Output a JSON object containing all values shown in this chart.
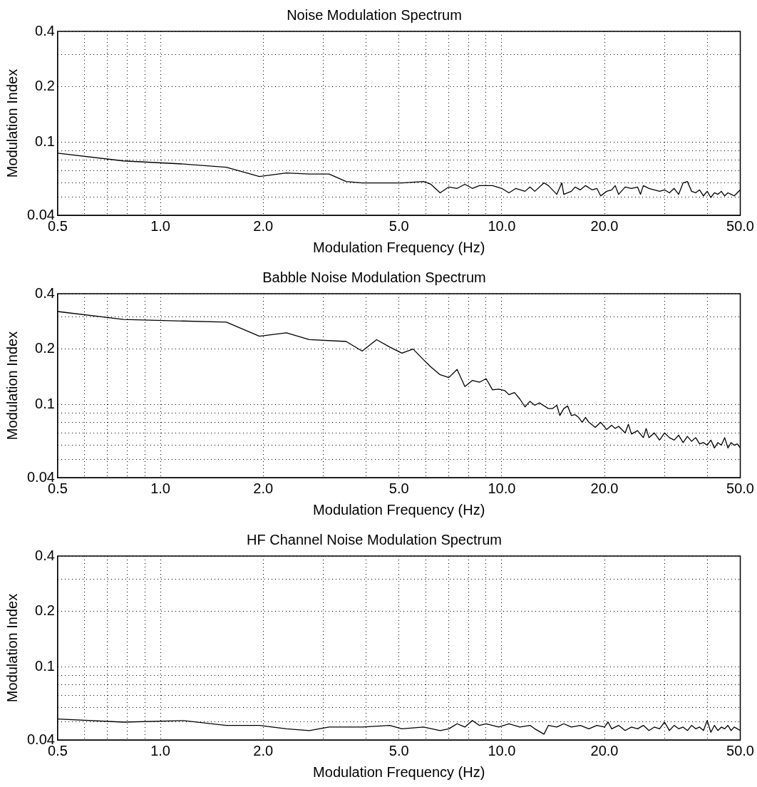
{
  "chart_data": [
    {
      "type": "line",
      "title": "Noise Modulation Spectrum",
      "xlabel": "Modulation Frequency (Hz)",
      "ylabel": "Modulation Index",
      "color": "#000000",
      "log": "xy",
      "grid": true,
      "xlim": [
        0.5,
        50
      ],
      "ylim": [
        0.04,
        0.4
      ],
      "xticks": [
        {
          "value": 0.5,
          "label": "0.5"
        },
        {
          "value": 0.6,
          "label": null
        },
        {
          "value": 0.7,
          "label": null
        },
        {
          "value": 0.8,
          "label": null
        },
        {
          "value": 0.9,
          "label": null
        },
        {
          "value": 1,
          "label": "1.0"
        },
        {
          "value": 2,
          "label": "2.0"
        },
        {
          "value": 3,
          "label": null
        },
        {
          "value": 4,
          "label": null
        },
        {
          "value": 5,
          "label": "5.0"
        },
        {
          "value": 6,
          "label": null
        },
        {
          "value": 7,
          "label": null
        },
        {
          "value": 8,
          "label": null
        },
        {
          "value": 9,
          "label": null
        },
        {
          "value": 10,
          "label": "10.0"
        },
        {
          "value": 20,
          "label": "20.0"
        },
        {
          "value": 30,
          "label": null
        },
        {
          "value": 40,
          "label": null
        },
        {
          "value": 50,
          "label": "50.0"
        }
      ],
      "yticks": [
        0.04,
        {
          "value": 0.05,
          "label": null
        },
        {
          "value": 0.06,
          "label": null
        },
        {
          "value": 0.07,
          "label": null
        },
        {
          "value": 0.08,
          "label": null
        },
        {
          "value": 0.09,
          "label": null
        },
        0.1,
        0.2,
        {
          "value": 0.3,
          "label": null
        },
        0.4
      ],
      "x": [
        0.5,
        0.78,
        1.17,
        1.56,
        1.95,
        2.34,
        2.73,
        3.12,
        3.5,
        3.9,
        4.3,
        5.1,
        5.9,
        6.2,
        6.6,
        7.0,
        7.4,
        7.8,
        8.2,
        8.6,
        9.4,
        10,
        10.5,
        11,
        11.7,
        12.1,
        12.5,
        13.3,
        13.7,
        14.5,
        15,
        15.2,
        16,
        16.4,
        17,
        17.6,
        18.4,
        19,
        19.5,
        20.3,
        21,
        21.5,
        22,
        23,
        24,
        25,
        25.5,
        26,
        27,
        28,
        29,
        30,
        31,
        32,
        33,
        34,
        35,
        36,
        37,
        38,
        39,
        40,
        41,
        42,
        43,
        44,
        45,
        46,
        47,
        48,
        49,
        50
      ],
      "values": [
        0.087,
        0.079,
        0.076,
        0.073,
        0.065,
        0.068,
        0.067,
        0.067,
        0.061,
        0.06,
        0.06,
        0.06,
        0.061,
        0.059,
        0.053,
        0.057,
        0.056,
        0.059,
        0.056,
        0.058,
        0.058,
        0.056,
        0.053,
        0.056,
        0.054,
        0.057,
        0.054,
        0.06,
        0.058,
        0.052,
        0.06,
        0.052,
        0.054,
        0.057,
        0.055,
        0.058,
        0.055,
        0.056,
        0.051,
        0.054,
        0.055,
        0.058,
        0.052,
        0.057,
        0.056,
        0.057,
        0.052,
        0.058,
        0.056,
        0.055,
        0.054,
        0.055,
        0.053,
        0.056,
        0.052,
        0.06,
        0.061,
        0.054,
        0.053,
        0.055,
        0.051,
        0.054,
        0.05,
        0.053,
        0.052,
        0.054,
        0.051,
        0.053,
        0.052,
        0.051,
        0.053,
        0.055
      ]
    },
    {
      "type": "line",
      "title": "Babble Noise Modulation Spectrum",
      "xlabel": "Modulation Frequency (Hz)",
      "ylabel": "Modulation Index",
      "color": "#000000",
      "log": "xy",
      "grid": true,
      "xlim": [
        0.5,
        50
      ],
      "ylim": [
        0.04,
        0.4
      ],
      "xticks": [
        {
          "value": 0.5,
          "label": "0.5"
        },
        {
          "value": 0.6,
          "label": null
        },
        {
          "value": 0.7,
          "label": null
        },
        {
          "value": 0.8,
          "label": null
        },
        {
          "value": 0.9,
          "label": null
        },
        {
          "value": 1,
          "label": "1.0"
        },
        {
          "value": 2,
          "label": "2.0"
        },
        {
          "value": 3,
          "label": null
        },
        {
          "value": 4,
          "label": null
        },
        {
          "value": 5,
          "label": "5.0"
        },
        {
          "value": 6,
          "label": null
        },
        {
          "value": 7,
          "label": null
        },
        {
          "value": 8,
          "label": null
        },
        {
          "value": 9,
          "label": null
        },
        {
          "value": 10,
          "label": "10.0"
        },
        {
          "value": 20,
          "label": "20.0"
        },
        {
          "value": 30,
          "label": null
        },
        {
          "value": 40,
          "label": null
        },
        {
          "value": 50,
          "label": "50.0"
        }
      ],
      "yticks": [
        0.04,
        {
          "value": 0.05,
          "label": null
        },
        {
          "value": 0.06,
          "label": null
        },
        {
          "value": 0.07,
          "label": null
        },
        {
          "value": 0.08,
          "label": null
        },
        {
          "value": 0.09,
          "label": null
        },
        0.1,
        0.2,
        {
          "value": 0.3,
          "label": null
        },
        0.4
      ],
      "x": [
        0.5,
        0.78,
        1.56,
        1.95,
        2.34,
        2.73,
        3.5,
        3.9,
        4.3,
        4.7,
        5.1,
        5.5,
        5.9,
        6.2,
        6.6,
        7.0,
        7.4,
        7.8,
        8.2,
        8.6,
        9.0,
        9.4,
        9.8,
        10.2,
        10.5,
        10.9,
        11.3,
        11.7,
        12.1,
        12.5,
        12.9,
        13.7,
        14.1,
        14.5,
        14.8,
        15.2,
        15.6,
        16,
        16.4,
        16.8,
        17.2,
        17.6,
        18,
        18.8,
        19.5,
        20.3,
        21,
        21.5,
        22,
        23,
        23.5,
        24,
        25,
        26,
        26.5,
        27,
        28,
        29,
        30,
        31,
        32,
        33,
        34,
        35,
        36,
        37,
        38,
        39,
        40,
        41,
        42,
        43,
        44,
        45,
        46,
        47,
        48,
        49,
        50
      ],
      "values": [
        0.32,
        0.29,
        0.28,
        0.235,
        0.245,
        0.225,
        0.22,
        0.195,
        0.225,
        0.205,
        0.19,
        0.2,
        0.175,
        0.16,
        0.145,
        0.14,
        0.155,
        0.125,
        0.135,
        0.132,
        0.138,
        0.12,
        0.121,
        0.119,
        0.113,
        0.116,
        0.107,
        0.097,
        0.104,
        0.099,
        0.102,
        0.095,
        0.095,
        0.099,
        0.087,
        0.095,
        0.098,
        0.087,
        0.088,
        0.085,
        0.08,
        0.085,
        0.08,
        0.075,
        0.08,
        0.073,
        0.077,
        0.074,
        0.076,
        0.07,
        0.078,
        0.069,
        0.072,
        0.066,
        0.074,
        0.066,
        0.07,
        0.064,
        0.07,
        0.066,
        0.064,
        0.068,
        0.062,
        0.067,
        0.063,
        0.066,
        0.061,
        0.062,
        0.06,
        0.064,
        0.058,
        0.062,
        0.06,
        0.066,
        0.058,
        0.062,
        0.06,
        0.061,
        0.058
      ]
    },
    {
      "type": "line",
      "title": "HF Channel Noise Modulation Spectrum",
      "xlabel": "Modulation Frequency (Hz)",
      "ylabel": "Modulation Index",
      "color": "#000000",
      "log": "xy",
      "grid": true,
      "xlim": [
        0.5,
        50
      ],
      "ylim": [
        0.04,
        0.4
      ],
      "xticks": [
        {
          "value": 0.5,
          "label": "0.5"
        },
        {
          "value": 0.6,
          "label": null
        },
        {
          "value": 0.7,
          "label": null
        },
        {
          "value": 0.8,
          "label": null
        },
        {
          "value": 0.9,
          "label": null
        },
        {
          "value": 1,
          "label": "1.0"
        },
        {
          "value": 2,
          "label": "2.0"
        },
        {
          "value": 3,
          "label": null
        },
        {
          "value": 4,
          "label": null
        },
        {
          "value": 5,
          "label": "5.0"
        },
        {
          "value": 6,
          "label": null
        },
        {
          "value": 7,
          "label": null
        },
        {
          "value": 8,
          "label": null
        },
        {
          "value": 9,
          "label": null
        },
        {
          "value": 10,
          "label": "10.0"
        },
        {
          "value": 20,
          "label": "20.0"
        },
        {
          "value": 30,
          "label": null
        },
        {
          "value": 40,
          "label": null
        },
        {
          "value": 50,
          "label": "50.0"
        }
      ],
      "yticks": [
        0.04,
        {
          "value": 0.05,
          "label": null
        },
        {
          "value": 0.06,
          "label": null
        },
        {
          "value": 0.07,
          "label": null
        },
        {
          "value": 0.08,
          "label": null
        },
        {
          "value": 0.09,
          "label": null
        },
        0.1,
        0.2,
        {
          "value": 0.3,
          "label": null
        },
        0.4
      ],
      "x": [
        0.5,
        0.78,
        1.17,
        1.56,
        1.95,
        2.34,
        2.73,
        3.12,
        3.9,
        4.7,
        5.1,
        5.9,
        6.6,
        7.0,
        7.4,
        7.8,
        8.2,
        8.6,
        9.0,
        9.8,
        10.5,
        11.3,
        12.1,
        12.5,
        13.3,
        13.7,
        14.5,
        15.2,
        16,
        17,
        18,
        19,
        20,
        20.5,
        21,
        22,
        23,
        24,
        25,
        26,
        27,
        28,
        29,
        30,
        31,
        32,
        33,
        34,
        35,
        36,
        37,
        38,
        39,
        40,
        41,
        42,
        43,
        44,
        45,
        46,
        47,
        48,
        49,
        50
      ],
      "values": [
        0.052,
        0.05,
        0.051,
        0.048,
        0.048,
        0.046,
        0.045,
        0.047,
        0.047,
        0.048,
        0.046,
        0.047,
        0.045,
        0.046,
        0.049,
        0.047,
        0.051,
        0.048,
        0.049,
        0.047,
        0.049,
        0.047,
        0.048,
        0.046,
        0.043,
        0.048,
        0.047,
        0.049,
        0.047,
        0.048,
        0.046,
        0.048,
        0.047,
        0.05,
        0.046,
        0.048,
        0.045,
        0.047,
        0.046,
        0.048,
        0.045,
        0.047,
        0.046,
        0.05,
        0.045,
        0.048,
        0.046,
        0.047,
        0.045,
        0.048,
        0.046,
        0.047,
        0.045,
        0.051,
        0.044,
        0.048,
        0.045,
        0.047,
        0.046,
        0.048,
        0.045,
        0.047,
        0.046,
        0.045
      ]
    }
  ]
}
